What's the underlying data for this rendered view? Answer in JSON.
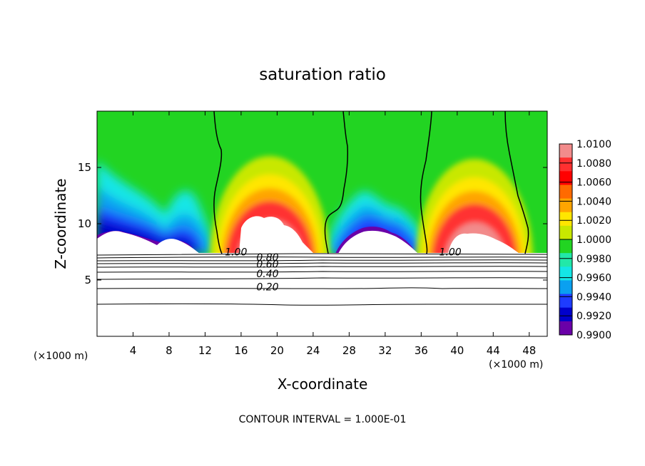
{
  "chart_data": {
    "type": "heatmap",
    "title": "saturation ratio",
    "xlabel": "X-coordinate",
    "ylabel": "Z-coordinate",
    "x_unit_left": "(×1000 m)",
    "x_unit_right": "(×1000 m)",
    "xlim": [
      0,
      50
    ],
    "ylim": [
      0,
      20
    ],
    "x_ticks": [
      4,
      8,
      12,
      16,
      20,
      24,
      28,
      32,
      36,
      40,
      44,
      48
    ],
    "y_ticks": [
      5,
      10,
      15
    ],
    "colorbar": {
      "min": 0.99,
      "max": 1.01,
      "labels": [
        "1.0100",
        "1.0080",
        "1.0060",
        "1.0040",
        "1.0020",
        "1.0000",
        "0.9980",
        "0.9960",
        "0.9940",
        "0.9920",
        "0.9900"
      ],
      "colors": [
        "#f28b8b",
        "#ff3030",
        "#ff0000",
        "#ff6a00",
        "#ffa500",
        "#ffe600",
        "#c8e800",
        "#22d422",
        "#22e8a8",
        "#14e6e6",
        "#0aa0f0",
        "#1e3cff",
        "#0000cc",
        "#6a00a8"
      ]
    },
    "contour_labels": [
      {
        "text": "1.00",
        "x": 14.2,
        "z": 7.45
      },
      {
        "text": "1.00",
        "x": 38.0,
        "z": 7.45
      },
      {
        "text": "0.80",
        "x": 17.7,
        "z": 6.95
      },
      {
        "text": "0.60",
        "x": 17.7,
        "z": 6.35
      },
      {
        "text": "0.40",
        "x": 17.7,
        "z": 5.5
      },
      {
        "text": "0.20",
        "x": 17.7,
        "z": 4.35
      }
    ],
    "footer": "CONTOUR INTERVAL = 1.000E-01"
  }
}
